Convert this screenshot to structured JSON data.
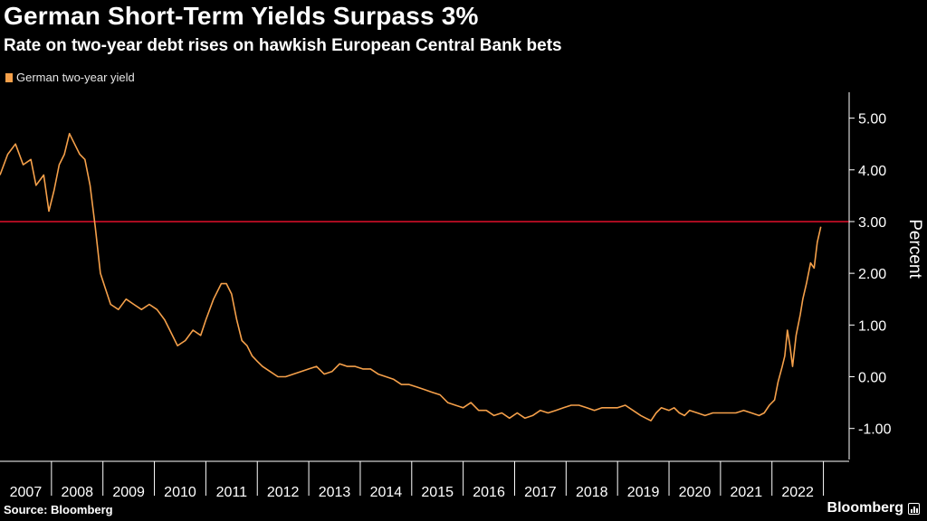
{
  "header": {
    "title": "German Short-Term Yields Surpass 3%",
    "subtitle": "Rate on two-year debt rises on hawkish European Central Bank bets"
  },
  "footer": {
    "source": "Source: Bloomberg",
    "brand": "Bloomberg"
  },
  "colors": {
    "background": "#000000",
    "series": "#f5a04a",
    "reference_line": "#e0102a",
    "axis": "#ffffff"
  },
  "chart_data": {
    "type": "line",
    "title": "German Short-Term Yields Surpass 3%",
    "subtitle": "Rate on two-year debt rises on hawkish European Central Bank bets",
    "xlabel": "",
    "ylabel": "Percent",
    "ylim": [
      -1.6,
      5.5
    ],
    "xlim": [
      2007.0,
      2023.5
    ],
    "yticks": [
      5,
      4,
      3,
      2,
      1,
      0,
      -1
    ],
    "ytick_labels": [
      "5.00",
      "4.00",
      "3.00",
      "2.00",
      "1.00",
      "0.00",
      "-1.00"
    ],
    "xtick_labels": [
      "2007",
      "2008",
      "2009",
      "2010",
      "2011",
      "2012",
      "2013",
      "2014",
      "2015",
      "2016",
      "2017",
      "2018",
      "2019",
      "2020",
      "2021",
      "2022"
    ],
    "grid": false,
    "legend": "top-left",
    "reference_line": {
      "y": 3.0
    },
    "series": [
      {
        "name": "German two-year yield",
        "x": [
          2007.0,
          2007.15,
          2007.3,
          2007.45,
          2007.6,
          2007.7,
          2007.85,
          2007.95,
          2008.05,
          2008.15,
          2008.25,
          2008.35,
          2008.45,
          2008.55,
          2008.65,
          2008.75,
          2008.85,
          2008.95,
          2009.05,
          2009.15,
          2009.3,
          2009.45,
          2009.6,
          2009.75,
          2009.9,
          2010.05,
          2010.2,
          2010.3,
          2010.45,
          2010.6,
          2010.75,
          2010.9,
          2011.0,
          2011.15,
          2011.3,
          2011.4,
          2011.5,
          2011.6,
          2011.7,
          2011.8,
          2011.9,
          2012.0,
          2012.1,
          2012.25,
          2012.4,
          2012.55,
          2012.7,
          2012.85,
          2013.0,
          2013.15,
          2013.3,
          2013.45,
          2013.6,
          2013.75,
          2013.9,
          2014.05,
          2014.2,
          2014.35,
          2014.5,
          2014.65,
          2014.8,
          2014.95,
          2015.1,
          2015.25,
          2015.4,
          2015.55,
          2015.7,
          2015.85,
          2016.0,
          2016.15,
          2016.3,
          2016.45,
          2016.6,
          2016.75,
          2016.9,
          2017.05,
          2017.2,
          2017.35,
          2017.5,
          2017.65,
          2017.8,
          2017.95,
          2018.1,
          2018.25,
          2018.4,
          2018.55,
          2018.7,
          2018.85,
          2019.0,
          2019.15,
          2019.3,
          2019.45,
          2019.55,
          2019.65,
          2019.75,
          2019.85,
          2020.0,
          2020.1,
          2020.2,
          2020.3,
          2020.4,
          2020.55,
          2020.7,
          2020.85,
          2021.0,
          2021.15,
          2021.3,
          2021.45,
          2021.6,
          2021.75,
          2021.85,
          2021.95,
          2022.05,
          2022.12,
          2022.2,
          2022.25,
          2022.3,
          2022.35,
          2022.4,
          2022.47,
          2022.55,
          2022.6,
          2022.67,
          2022.75,
          2022.82,
          2022.88,
          2022.95
        ],
        "y": [
          3.9,
          4.3,
          4.5,
          4.1,
          4.2,
          3.7,
          3.9,
          3.2,
          3.6,
          4.1,
          4.3,
          4.7,
          4.5,
          4.3,
          4.2,
          3.7,
          2.9,
          2.0,
          1.7,
          1.4,
          1.3,
          1.5,
          1.4,
          1.3,
          1.4,
          1.3,
          1.1,
          0.9,
          0.6,
          0.7,
          0.9,
          0.8,
          1.1,
          1.5,
          1.8,
          1.8,
          1.6,
          1.1,
          0.7,
          0.6,
          0.4,
          0.3,
          0.2,
          0.1,
          0.0,
          0.0,
          0.05,
          0.1,
          0.15,
          0.2,
          0.05,
          0.1,
          0.25,
          0.2,
          0.2,
          0.15,
          0.15,
          0.05,
          0.0,
          -0.05,
          -0.15,
          -0.15,
          -0.2,
          -0.25,
          -0.3,
          -0.35,
          -0.5,
          -0.55,
          -0.6,
          -0.5,
          -0.65,
          -0.65,
          -0.75,
          -0.7,
          -0.8,
          -0.7,
          -0.8,
          -0.75,
          -0.65,
          -0.7,
          -0.65,
          -0.6,
          -0.55,
          -0.55,
          -0.6,
          -0.65,
          -0.6,
          -0.6,
          -0.6,
          -0.55,
          -0.65,
          -0.75,
          -0.8,
          -0.85,
          -0.7,
          -0.6,
          -0.65,
          -0.6,
          -0.7,
          -0.75,
          -0.65,
          -0.7,
          -0.75,
          -0.7,
          -0.7,
          -0.7,
          -0.7,
          -0.65,
          -0.7,
          -0.75,
          -0.7,
          -0.55,
          -0.45,
          -0.1,
          0.2,
          0.4,
          0.9,
          0.6,
          0.2,
          0.8,
          1.2,
          1.5,
          1.8,
          2.2,
          2.1,
          2.6,
          2.9
        ]
      }
    ]
  }
}
